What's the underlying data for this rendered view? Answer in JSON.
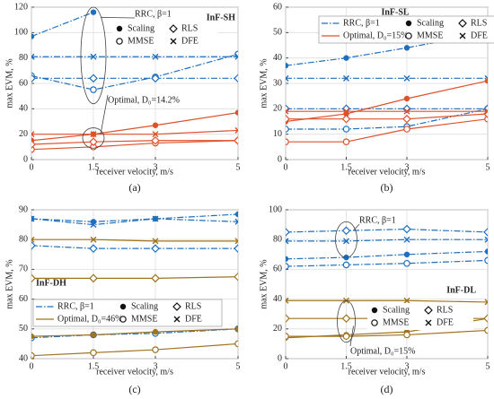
{
  "chart_data": [
    {
      "type": "line",
      "title": "InF-SH",
      "panel_label": "(a)",
      "xlabel": "receiver velocity, m/s",
      "ylabel": "max EVM, %",
      "x": [
        0,
        1.5,
        3,
        5
      ],
      "xlim": [
        0,
        5
      ],
      "xticks": [
        0,
        1.5,
        3,
        5
      ],
      "ylim": [
        0,
        120
      ],
      "yticks": [
        0,
        20,
        40,
        60,
        80,
        100,
        120
      ],
      "grid": true,
      "groups": [
        {
          "name": "RRC, β=1",
          "color": "#1f6fbf",
          "dashed": true
        },
        {
          "name": "Optimal, D₀=14.2%",
          "color": "#e0502a",
          "dashed": false
        }
      ],
      "group_labels": "annotation",
      "markers": [
        {
          "name": "Scaling",
          "shape": "filled-circle"
        },
        {
          "name": "MMSE",
          "shape": "open-circle"
        },
        {
          "name": "RLS",
          "shape": "diamond"
        },
        {
          "name": "DFE",
          "shape": "cross"
        }
      ],
      "series": [
        {
          "group": 0,
          "marker": 0,
          "values": [
            97,
            116,
            null,
            null
          ]
        },
        {
          "group": 0,
          "marker": 1,
          "values": [
            66,
            55,
            65,
            83
          ]
        },
        {
          "group": 0,
          "marker": 2,
          "values": [
            64,
            64,
            64,
            64
          ]
        },
        {
          "group": 0,
          "marker": 3,
          "values": [
            81,
            81,
            81,
            81
          ]
        },
        {
          "group": 1,
          "marker": 0,
          "values": [
            15,
            20,
            27,
            37
          ]
        },
        {
          "group": 1,
          "marker": 1,
          "values": [
            8,
            10,
            13,
            15
          ]
        },
        {
          "group": 1,
          "marker": 2,
          "values": [
            12,
            14,
            15,
            15
          ]
        },
        {
          "group": 1,
          "marker": 3,
          "values": [
            20,
            20,
            20,
            23
          ]
        }
      ]
    },
    {
      "type": "line",
      "title": "InF-SL",
      "panel_label": "(b)",
      "xlabel": "receiver velocity, m/s",
      "ylabel": "max EVM, %",
      "x": [
        0,
        1.5,
        3,
        5
      ],
      "xlim": [
        0,
        5
      ],
      "xticks": [
        0,
        1.5,
        3,
        5
      ],
      "ylim": [
        0,
        60
      ],
      "yticks": [
        0,
        10,
        20,
        30,
        40,
        50,
        60
      ],
      "grid": true,
      "groups": [
        {
          "name": "RRC, β=1",
          "color": "#1f6fbf",
          "dashed": true
        },
        {
          "name": "Optimal, D₀=15%",
          "color": "#e0502a",
          "dashed": false
        }
      ],
      "group_labels": "legend",
      "markers": [
        {
          "name": "Scaling",
          "shape": "filled-circle"
        },
        {
          "name": "MMSE",
          "shape": "open-circle"
        },
        {
          "name": "RLS",
          "shape": "diamond"
        },
        {
          "name": "DFE",
          "shape": "cross"
        }
      ],
      "series": [
        {
          "group": 0,
          "marker": 0,
          "values": [
            37,
            40,
            44,
            50
          ]
        },
        {
          "group": 0,
          "marker": 1,
          "values": [
            12,
            12,
            13,
            20
          ]
        },
        {
          "group": 0,
          "marker": 2,
          "values": [
            20,
            20,
            20,
            20
          ]
        },
        {
          "group": 0,
          "marker": 3,
          "values": [
            32,
            32,
            32,
            32
          ]
        },
        {
          "group": 1,
          "marker": 0,
          "values": [
            15,
            18,
            24,
            31
          ]
        },
        {
          "group": 1,
          "marker": 1,
          "values": [
            7,
            7,
            12,
            16
          ]
        },
        {
          "group": 1,
          "marker": 2,
          "values": [
            16,
            16,
            16,
            18
          ]
        },
        {
          "group": 1,
          "marker": 3,
          "values": [
            19,
            19,
            19,
            19
          ]
        }
      ]
    },
    {
      "type": "line",
      "title": "InF-DH",
      "panel_label": "(c)",
      "xlabel": "receiver velocity, m/s",
      "ylabel": "max EVM, %",
      "x": [
        0,
        1.5,
        3,
        5
      ],
      "xlim": [
        0,
        5
      ],
      "xticks": [
        0,
        1.5,
        3,
        5
      ],
      "ylim": [
        40,
        90
      ],
      "yticks": [
        40,
        50,
        60,
        70,
        80,
        90
      ],
      "grid": true,
      "groups": [
        {
          "name": "RRC, β=1",
          "color": "#1f6fbf",
          "dashed": true
        },
        {
          "name": "Optimal, D₀=46%",
          "color": "#a0731f",
          "dashed": false
        }
      ],
      "group_labels": "legend",
      "markers": [
        {
          "name": "Scaling",
          "shape": "filled-circle"
        },
        {
          "name": "MMSE",
          "shape": "open-circle"
        },
        {
          "name": "RLS",
          "shape": "diamond"
        },
        {
          "name": "DFE",
          "shape": "cross"
        }
      ],
      "series": [
        {
          "group": 0,
          "marker": 0,
          "values": [
            87,
            86,
            87,
            88.5
          ]
        },
        {
          "group": 0,
          "marker": 1,
          "values": [
            47,
            48,
            48.5,
            50
          ]
        },
        {
          "group": 0,
          "marker": 2,
          "values": [
            78,
            77,
            77,
            77
          ]
        },
        {
          "group": 0,
          "marker": 3,
          "values": [
            87,
            85,
            87,
            86
          ]
        },
        {
          "group": 1,
          "marker": 0,
          "values": [
            47.5,
            48,
            49,
            50
          ]
        },
        {
          "group": 1,
          "marker": 1,
          "values": [
            41,
            42,
            43,
            45
          ]
        },
        {
          "group": 1,
          "marker": 2,
          "values": [
            67,
            67,
            67,
            67.5
          ]
        },
        {
          "group": 1,
          "marker": 3,
          "values": [
            80,
            80,
            79.5,
            79.5
          ]
        }
      ]
    },
    {
      "type": "line",
      "title": "InF-DL",
      "panel_label": "(d)",
      "xlabel": "receiver velocity, m/s",
      "ylabel": "max EVM, %",
      "x": [
        0,
        1.5,
        3,
        5
      ],
      "xlim": [
        0,
        5
      ],
      "xticks": [
        0,
        1.5,
        3,
        5
      ],
      "ylim": [
        0,
        100
      ],
      "yticks": [
        0,
        20,
        40,
        60,
        80,
        100
      ],
      "grid": true,
      "groups": [
        {
          "name": "RRC, β=1",
          "color": "#1f6fbf",
          "dashed": true
        },
        {
          "name": "Optimal, D₀=15%",
          "color": "#a0731f",
          "dashed": false
        }
      ],
      "group_labels": "annotation",
      "markers": [
        {
          "name": "Scaling",
          "shape": "filled-circle"
        },
        {
          "name": "MMSE",
          "shape": "open-circle"
        },
        {
          "name": "RLS",
          "shape": "diamond"
        },
        {
          "name": "DFE",
          "shape": "cross"
        }
      ],
      "series": [
        {
          "group": 0,
          "marker": 0,
          "values": [
            67,
            68,
            70,
            72
          ]
        },
        {
          "group": 0,
          "marker": 1,
          "values": [
            62,
            63,
            64,
            66
          ]
        },
        {
          "group": 0,
          "marker": 2,
          "values": [
            85,
            86,
            87,
            85
          ]
        },
        {
          "group": 0,
          "marker": 3,
          "values": [
            79,
            79,
            80,
            80
          ]
        },
        {
          "group": 1,
          "marker": 0,
          "values": [
            14,
            16,
            18,
            27
          ]
        },
        {
          "group": 1,
          "marker": 1,
          "values": [
            15,
            15,
            16,
            19
          ]
        },
        {
          "group": 1,
          "marker": 2,
          "values": [
            27,
            27,
            27,
            27
          ]
        },
        {
          "group": 1,
          "marker": 3,
          "values": [
            39,
            39,
            39,
            38
          ]
        }
      ]
    }
  ]
}
